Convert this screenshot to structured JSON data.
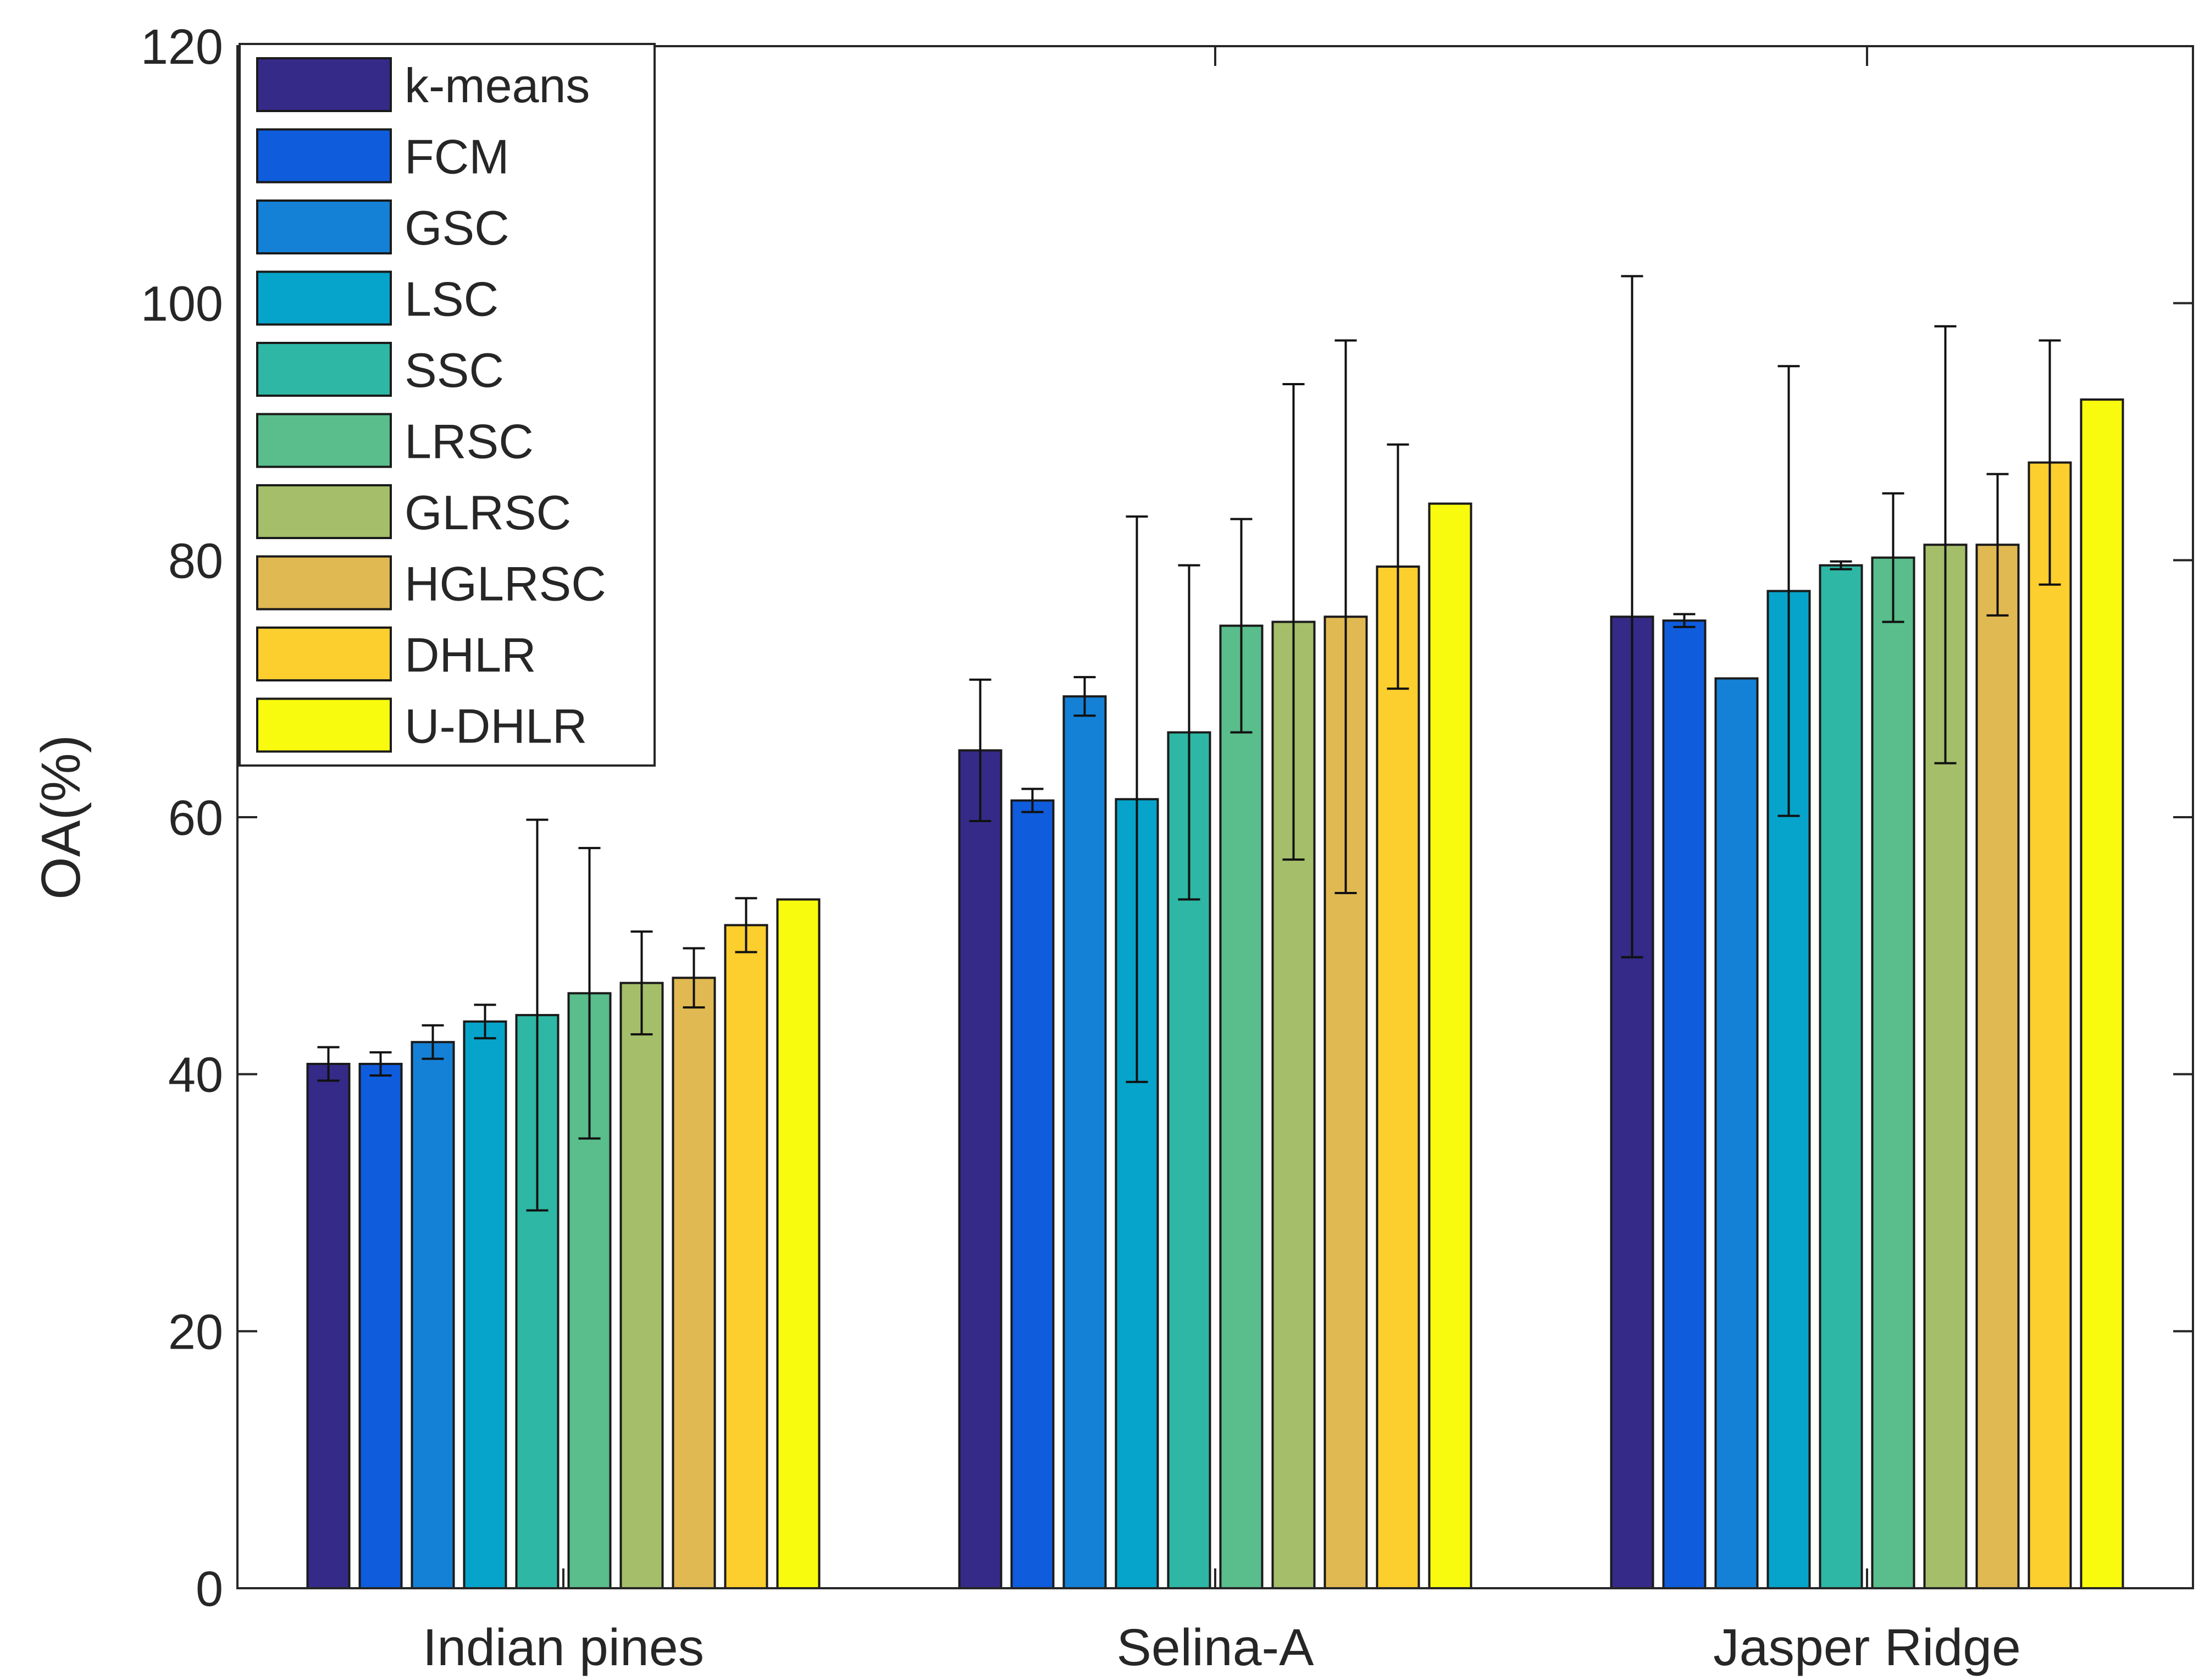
{
  "chart_data": {
    "type": "bar",
    "title": "",
    "xlabel": "",
    "ylabel": "OA(%)",
    "ylim": [
      0,
      120
    ],
    "yticks": [
      0,
      20,
      40,
      60,
      80,
      100,
      120
    ],
    "categories": [
      "Indian pines",
      "Selina-A",
      "Jasper Ridge"
    ],
    "legend_position": "top-left",
    "grid": false,
    "series": [
      {
        "name": "k-means",
        "color": "#352a87",
        "values": [
          40.8,
          65.2,
          75.6
        ],
        "error": [
          1.3,
          5.5,
          26.5
        ]
      },
      {
        "name": "FCM",
        "color": "#0f5cdd",
        "values": [
          40.8,
          61.3,
          75.3
        ],
        "error": [
          0.9,
          0.9,
          0.5
        ]
      },
      {
        "name": "GSC",
        "color": "#1481d6",
        "values": [
          42.5,
          69.4,
          70.8
        ],
        "error": [
          1.3,
          1.5,
          0.0
        ]
      },
      {
        "name": "LSC",
        "color": "#06a4ca",
        "values": [
          44.1,
          61.4,
          77.6
        ],
        "error": [
          1.3,
          22.0,
          17.5
        ]
      },
      {
        "name": "SSC",
        "color": "#2eb7a4",
        "values": [
          44.6,
          66.6,
          79.6
        ],
        "error": [
          15.2,
          13.0,
          0.3
        ]
      },
      {
        "name": "LRSC",
        "color": "#59bd8c",
        "values": [
          46.3,
          74.9,
          80.2
        ],
        "error": [
          11.3,
          8.3,
          5.0
        ]
      },
      {
        "name": "GLRSC",
        "color": "#a5be6a",
        "values": [
          47.1,
          75.2,
          81.2
        ],
        "error": [
          4.0,
          18.5,
          17.0
        ]
      },
      {
        "name": "HGLRSC",
        "color": "#e1b952",
        "values": [
          47.5,
          75.6,
          81.2
        ],
        "error": [
          2.3,
          21.5,
          5.5
        ]
      },
      {
        "name": "DHLR",
        "color": "#fcce2e",
        "values": [
          51.6,
          79.5,
          87.6
        ],
        "error": [
          2.1,
          9.5,
          9.5
        ]
      },
      {
        "name": "U-DHLR",
        "color": "#f9fb0e",
        "values": [
          53.6,
          84.4,
          92.5
        ],
        "error": [
          0,
          0,
          0
        ]
      }
    ]
  }
}
